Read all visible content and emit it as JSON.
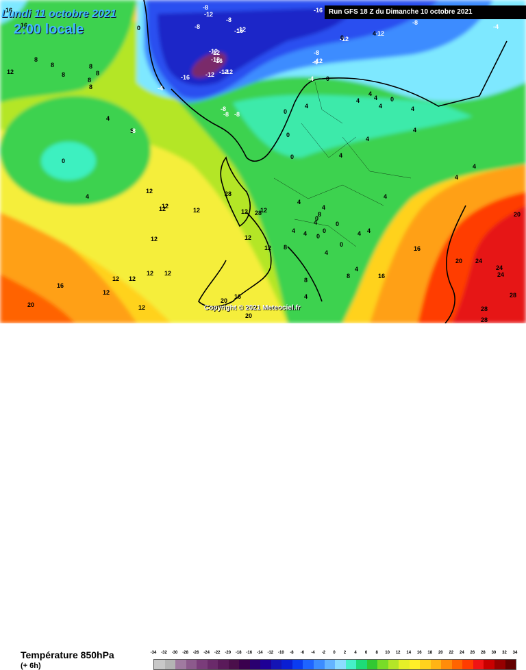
{
  "header": {
    "date": "Lundi 11 octobre 2021",
    "time": "2:00 locale",
    "run": "Run GFS 18 Z du Dimanche 10 octobre 2021",
    "copyright": "Copyright © 2021 Meteociel.fr"
  },
  "legend": {
    "title": "Température 850hPa",
    "subtitle": "(+ 6h)",
    "ticks": [
      "-34",
      "-32",
      "-30",
      "-28",
      "-26",
      "-24",
      "-22",
      "-20",
      "-18",
      "-16",
      "-14",
      "-12",
      "-10",
      "-8",
      "-6",
      "-4",
      "-2",
      "0",
      "2",
      "4",
      "6",
      "8",
      "10",
      "12",
      "14",
      "16",
      "18",
      "20",
      "22",
      "24",
      "26",
      "28",
      "30",
      "32",
      "34"
    ],
    "colors": [
      "#c8c8c8",
      "#b4b4b4",
      "#a07aa0",
      "#8c5a8c",
      "#7a3c7a",
      "#6a2a6a",
      "#5a1a5a",
      "#4b0f4b",
      "#3a004e",
      "#2a0070",
      "#1e0096",
      "#1414b4",
      "#0a1ed2",
      "#0a3cf0",
      "#1e64ff",
      "#3c8cff",
      "#64b4ff",
      "#8cdcff",
      "#46f0c8",
      "#1edc78",
      "#32c832",
      "#78dc28",
      "#b4e628",
      "#e6f028",
      "#fff028",
      "#ffd21e",
      "#ffb414",
      "#ff8c0a",
      "#ff6400",
      "#ff3c00",
      "#f01414",
      "#c80000",
      "#960000",
      "#640000"
    ]
  },
  "map": {
    "palette": {
      "purple": "#7a2a6a",
      "deep_blue": "#1e28c8",
      "blue": "#2a50f0",
      "light_blue": "#3c8cff",
      "cyan": "#7ee8ff",
      "aqua": "#3cf0c0",
      "green": "#3cd250",
      "yellow_green": "#b4e628",
      "yellow": "#f5ee3a",
      "yellow_orange": "#ffd21e",
      "orange": "#ffa014",
      "red": "#ff5000",
      "dark_red": "#e61414"
    },
    "labels": [
      {
        "t": "16"
      },
      {
        "t": "16"
      },
      {
        "t": "0"
      },
      {
        "t": "-8"
      },
      {
        "t": "-8"
      },
      {
        "t": "-8"
      },
      {
        "t": "-12"
      },
      {
        "t": "-16"
      },
      {
        "t": "-12"
      },
      {
        "t": "-16"
      },
      {
        "t": "-12"
      },
      {
        "t": "-12"
      },
      {
        "t": "-16"
      },
      {
        "t": "-12"
      },
      {
        "t": "-16"
      },
      {
        "t": "-12"
      },
      {
        "t": "-12"
      },
      {
        "t": "-8"
      },
      {
        "t": "-4"
      },
      {
        "t": "-8"
      },
      {
        "t": "-8"
      },
      {
        "t": "-8"
      },
      {
        "t": "-4"
      },
      {
        "t": "0"
      },
      {
        "t": "-8"
      },
      {
        "t": "-4"
      },
      {
        "t": "-4"
      },
      {
        "t": "0"
      },
      {
        "t": "-4"
      },
      {
        "t": "0"
      },
      {
        "t": "4"
      },
      {
        "t": "4"
      },
      {
        "t": "4"
      },
      {
        "t": "8"
      },
      {
        "t": "8"
      },
      {
        "t": "8"
      },
      {
        "t": "8"
      },
      {
        "t": "8"
      },
      {
        "t": "12"
      },
      {
        "t": "8"
      },
      {
        "t": "8"
      },
      {
        "t": "4"
      },
      {
        "t": "8"
      },
      {
        "t": "0"
      },
      {
        "t": "4"
      },
      {
        "t": "4"
      },
      {
        "t": "4"
      },
      {
        "t": "4"
      },
      {
        "t": "4"
      },
      {
        "t": "0"
      },
      {
        "t": "0"
      },
      {
        "t": "0"
      },
      {
        "t": "0"
      },
      {
        "t": "4"
      },
      {
        "t": "4"
      },
      {
        "t": "4"
      },
      {
        "t": "4"
      },
      {
        "t": "4"
      },
      {
        "t": "4"
      },
      {
        "t": "4"
      },
      {
        "t": "4"
      },
      {
        "t": "4"
      },
      {
        "t": "4"
      },
      {
        "t": "4"
      },
      {
        "t": "8"
      },
      {
        "t": "8"
      },
      {
        "t": "8"
      },
      {
        "t": "0"
      },
      {
        "t": "0"
      },
      {
        "t": "0"
      },
      {
        "t": "4"
      },
      {
        "t": "4"
      },
      {
        "t": "4"
      },
      {
        "t": "4"
      },
      {
        "t": "12"
      },
      {
        "t": "12"
      },
      {
        "t": "12"
      },
      {
        "t": "12"
      },
      {
        "t": "12"
      },
      {
        "t": "12"
      },
      {
        "t": "12"
      },
      {
        "t": "12"
      },
      {
        "t": "12"
      },
      {
        "t": "12"
      },
      {
        "t": "12"
      },
      {
        "t": "12"
      },
      {
        "t": "12"
      },
      {
        "t": "12"
      },
      {
        "t": "16"
      },
      {
        "t": "16"
      },
      {
        "t": "16"
      },
      {
        "t": "16"
      },
      {
        "t": "20"
      },
      {
        "t": "20"
      },
      {
        "t": "20"
      },
      {
        "t": "20"
      },
      {
        "t": "20"
      },
      {
        "t": "24"
      },
      {
        "t": "24"
      },
      {
        "t": "24"
      },
      {
        "t": "28"
      },
      {
        "t": "28"
      },
      {
        "t": "28"
      },
      {
        "t": "28"
      },
      {
        "t": "28"
      },
      {
        "t": "12"
      },
      {
        "t": "8"
      },
      {
        "t": "4"
      },
      {
        "t": "0"
      },
      {
        "t": "-12"
      },
      {
        "t": "-12"
      },
      {
        "t": "-12"
      },
      {
        "t": "-12"
      },
      {
        "t": "-8"
      },
      {
        "t": "-16"
      },
      {
        "t": "8"
      }
    ]
  }
}
